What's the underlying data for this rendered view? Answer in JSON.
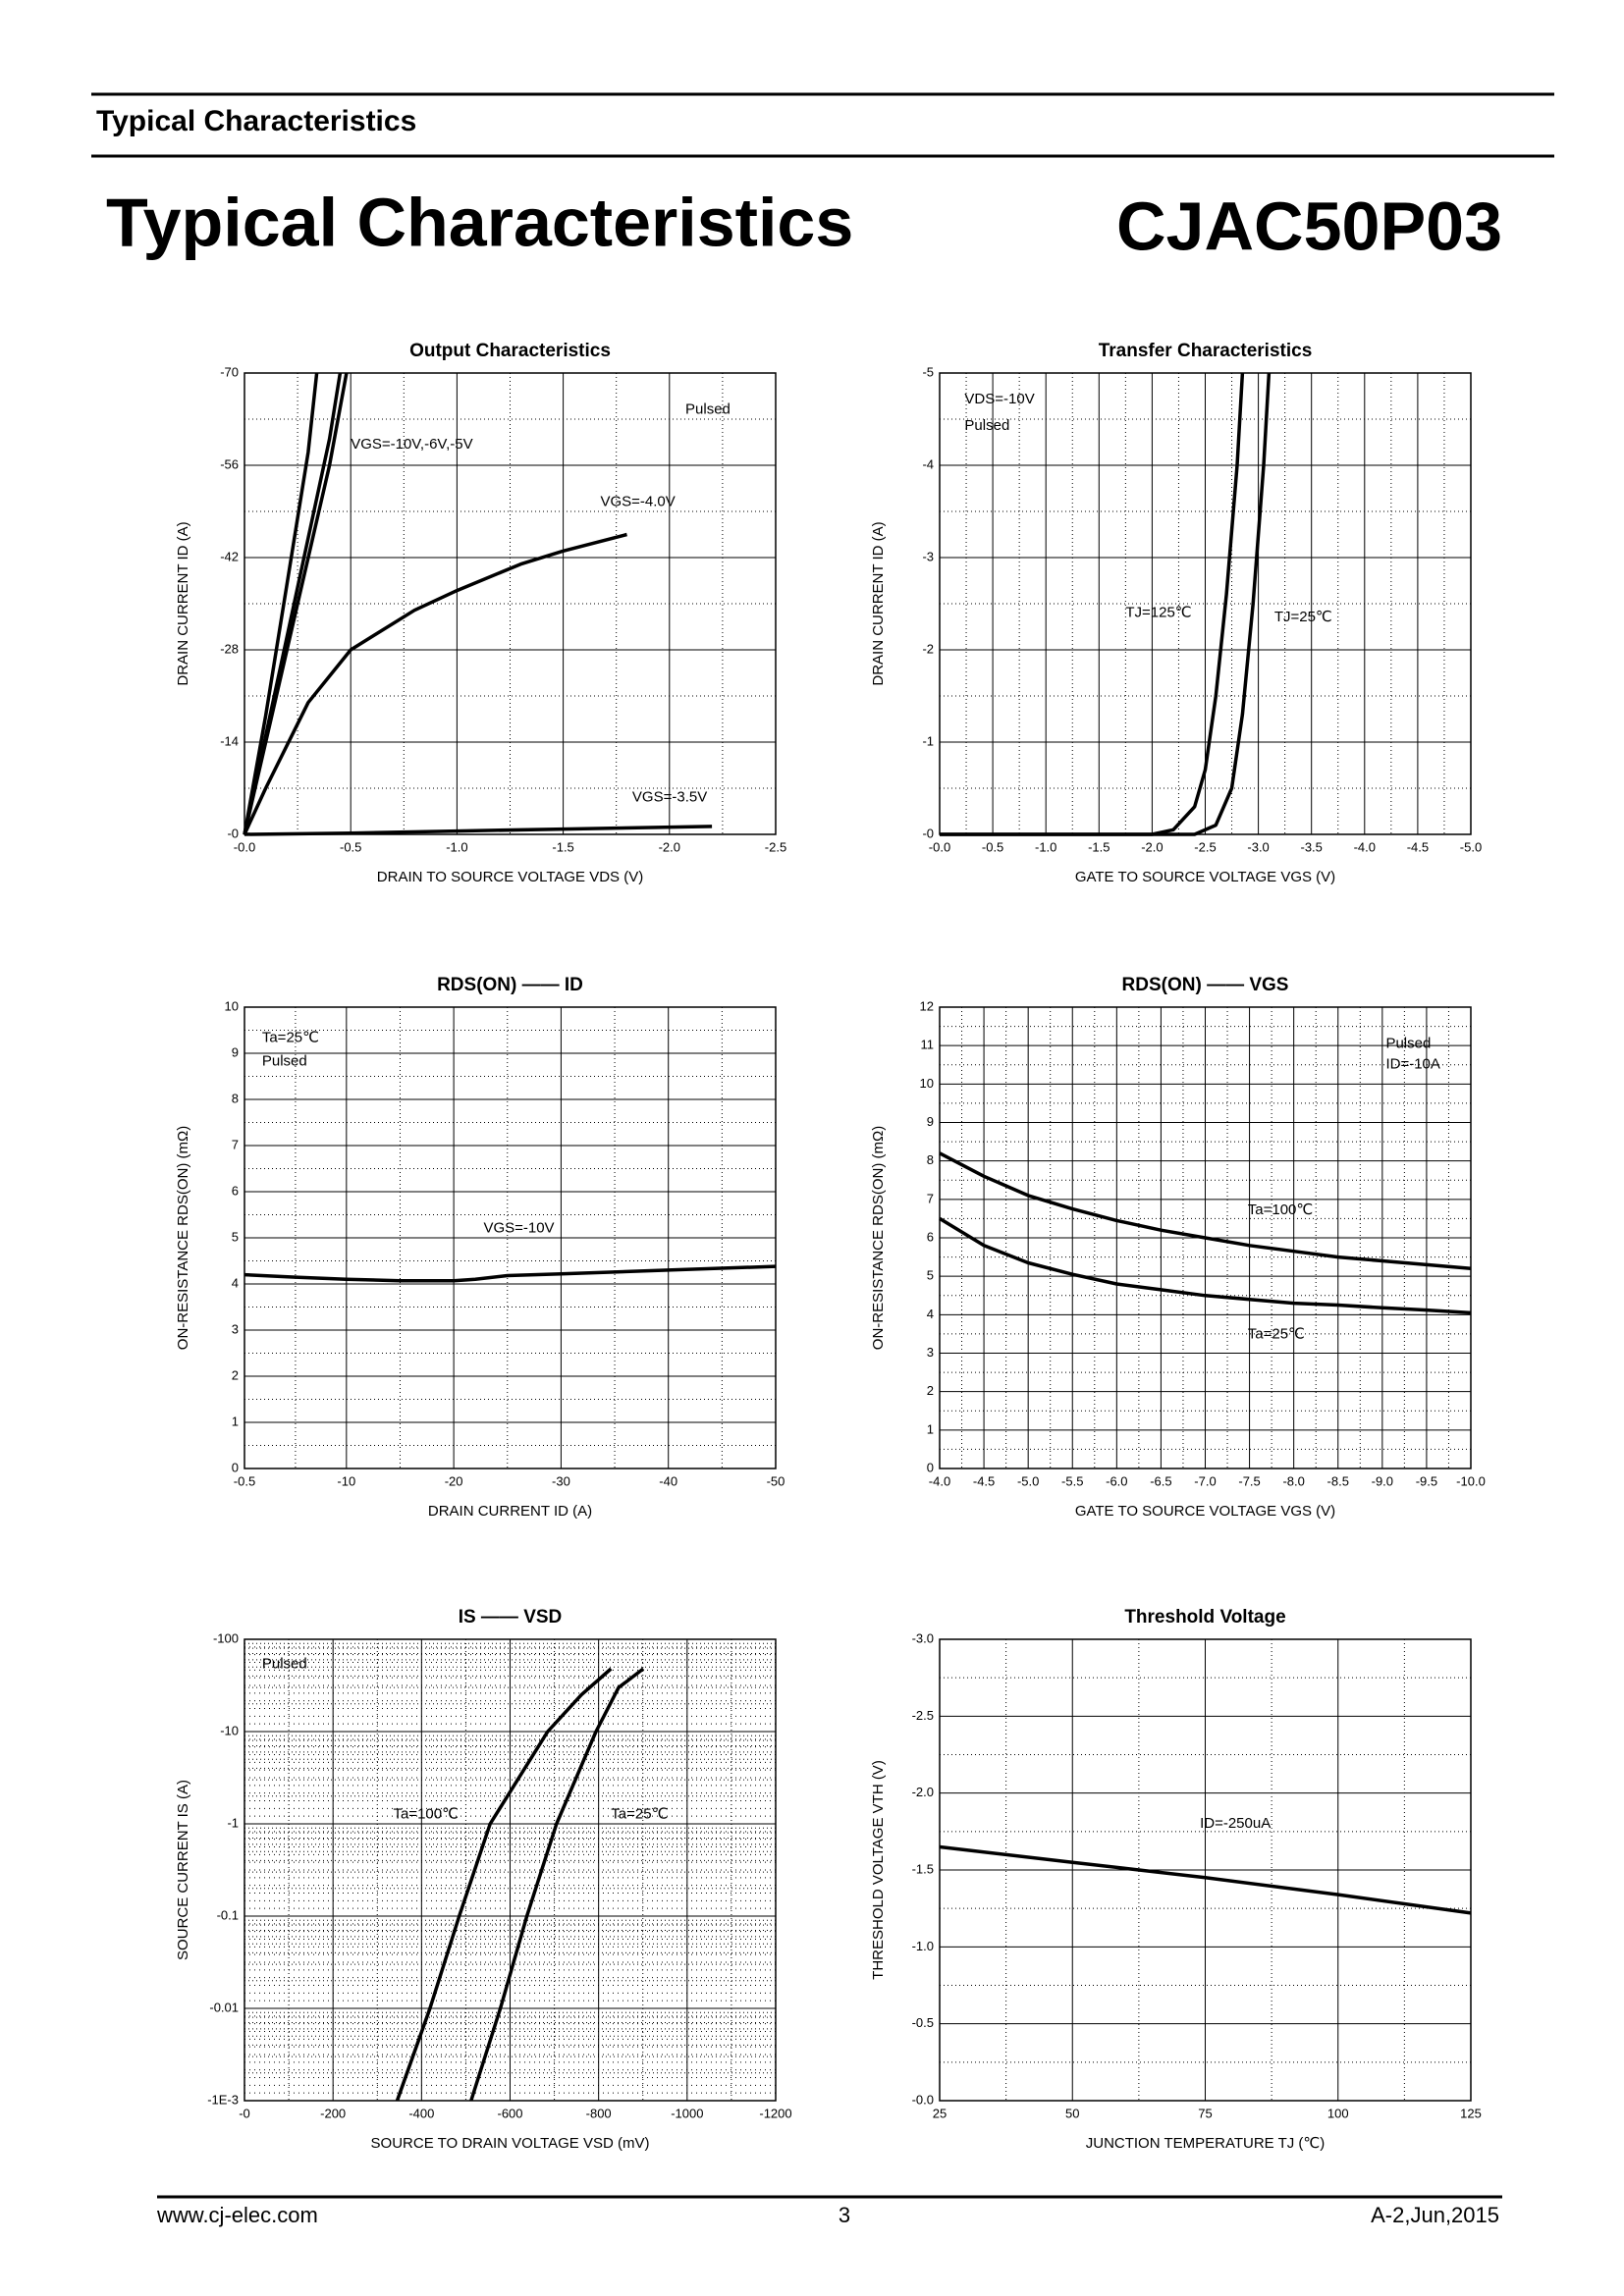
{
  "header": {
    "section": "Typical Characteristics",
    "title": "Typical Characteristics",
    "part": "CJAC50P03"
  },
  "footer": {
    "website": "www.cj-elec.com",
    "page": 3,
    "revision": "A-2,Jun,2015"
  },
  "chart_data": [
    {
      "type": "line",
      "title": "Output Characteristics",
      "x_label": "DRAIN TO SOURCE VOLTAGE VDS (V)",
      "y_label": "DRAIN CURRENT ID (A)",
      "xlim": [
        0,
        -2.5
      ],
      "xticks": [
        {
          "value": 0,
          "label": "-0.0"
        },
        -0.5,
        {
          "value": -1,
          "label": "-1.0"
        },
        -1.5,
        {
          "value": -2,
          "label": "-2.0"
        },
        -2.5
      ],
      "ylim": [
        0,
        -70
      ],
      "yticks": [
        {
          "value": 0,
          "label": "-0"
        },
        -14,
        -28,
        -42,
        -56,
        -70
      ],
      "grid": true,
      "annotations": [
        "Pulsed",
        "VGS=-10V,-6V,-5V",
        "VGS=-4.0V",
        "VGS=-3.5V"
      ],
      "series": [
        {
          "color": "#000000",
          "x": [
            0,
            -0.1,
            -0.2,
            -0.3,
            -0.34
          ],
          "values": [
            0,
            -18,
            -38,
            -58,
            -70
          ]
        },
        {
          "color": "#000000",
          "x": [
            0,
            -0.2,
            -0.4,
            -0.45
          ],
          "values": [
            0,
            -30,
            -60,
            -70
          ]
        },
        {
          "color": "#000000",
          "x": [
            0,
            -0.2,
            -0.4,
            -0.48
          ],
          "values": [
            0,
            -28,
            -56,
            -70
          ]
        },
        {
          "color": "#000000",
          "x": [
            0,
            -0.1,
            -0.3,
            -0.5,
            -0.8,
            -1,
            -1.3,
            -1.5,
            -1.8
          ],
          "values": [
            0,
            -7,
            -20,
            -28,
            -34,
            -37,
            -41,
            -43,
            -45.5
          ]
        },
        {
          "color": "#000000",
          "x": [
            0,
            -0.5,
            -1,
            -1.5,
            -2.2
          ],
          "values": [
            0,
            -0.2,
            -0.5,
            -0.8,
            -1.2
          ]
        }
      ]
    },
    {
      "type": "line",
      "title": "Transfer Characteristics",
      "x_label": "GATE TO SOURCE VOLTAGE VGS (V)",
      "y_label": "DRAIN CURRENT ID (A)",
      "xlim": [
        0,
        -5
      ],
      "xticks": [
        {
          "value": 0,
          "label": "-0.0"
        },
        -0.5,
        {
          "value": -1,
          "label": "-1.0"
        },
        -1.5,
        {
          "value": -2,
          "label": "-2.0"
        },
        -2.5,
        {
          "value": -3,
          "label": "-3.0"
        },
        -3.5,
        {
          "value": -4,
          "label": "-4.0"
        },
        -4.5,
        {
          "value": -5,
          "label": "-5.0"
        }
      ],
      "ylim": [
        0,
        -5
      ],
      "yticks": [
        {
          "value": 0,
          "label": "-0"
        },
        -1,
        -2,
        -3,
        -4,
        -5
      ],
      "grid": true,
      "annotations": [
        "VDS=-10V",
        "Pulsed",
        "TJ=125℃",
        "TJ=25℃"
      ],
      "series": [
        {
          "color": "#000000",
          "x": [
            0,
            -2,
            -2.2,
            -2.4,
            -2.5,
            -2.6,
            -2.7,
            -2.8,
            -2.85
          ],
          "values": [
            0,
            0,
            -0.05,
            -0.3,
            -0.7,
            -1.5,
            -2.6,
            -4,
            -5
          ]
        },
        {
          "color": "#000000",
          "x": [
            0,
            -2.4,
            -2.6,
            -2.75,
            -2.85,
            -2.95,
            -3.05,
            -3.1
          ],
          "values": [
            0,
            0,
            -0.1,
            -0.5,
            -1.3,
            -2.5,
            -4,
            -5
          ]
        }
      ]
    },
    {
      "type": "line",
      "title": "RDS(ON) —— ID",
      "x_label": "DRAIN CURRENT ID (A)",
      "y_label": "ON-RESISTANCE RDS(ON) (mΩ)",
      "xlim": [
        -0.5,
        -50
      ],
      "xticks": [
        -0.5,
        -10,
        -20,
        -30,
        -40,
        -50
      ],
      "ylim": [
        0,
        10
      ],
      "yticks": [
        0,
        1,
        2,
        3,
        4,
        5,
        6,
        7,
        8,
        9,
        10
      ],
      "grid": true,
      "annotations": [
        "Ta=25℃",
        "Pulsed",
        "VGS=-10V"
      ],
      "series": [
        {
          "color": "#000000",
          "x": [
            -0.5,
            -5,
            -10,
            -15,
            -20,
            -22,
            -25,
            -30,
            -40,
            -50
          ],
          "values": [
            4.2,
            4.15,
            4.1,
            4.07,
            4.07,
            4.1,
            4.18,
            4.22,
            4.3,
            4.38
          ]
        }
      ]
    },
    {
      "type": "line",
      "title": "RDS(ON) —— VGS",
      "x_label": "GATE TO SOURCE VOLTAGE VGS (V)",
      "y_label": "ON-RESISTANCE RDS(ON) (mΩ)",
      "xlim": [
        -4,
        -10
      ],
      "xticks": [
        {
          "value": -4,
          "label": "-4.0"
        },
        -4.5,
        {
          "value": -5,
          "label": "-5.0"
        },
        -5.5,
        {
          "value": -6,
          "label": "-6.0"
        },
        -6.5,
        {
          "value": -7,
          "label": "-7.0"
        },
        -7.5,
        {
          "value": -8,
          "label": "-8.0"
        },
        -8.5,
        {
          "value": -9,
          "label": "-9.0"
        },
        -9.5,
        {
          "value": -10,
          "label": "-10.0"
        }
      ],
      "ylim": [
        0,
        12
      ],
      "yticks": [
        0,
        1,
        2,
        3,
        4,
        5,
        6,
        7,
        8,
        9,
        10,
        11,
        12
      ],
      "grid": true,
      "annotations": [
        "Pulsed",
        "ID=-10A",
        "Ta=100℃",
        "Ta=25℃"
      ],
      "series": [
        {
          "color": "#000000",
          "x": [
            -4,
            -4.5,
            -5,
            -5.5,
            -6,
            -6.5,
            -7,
            -7.5,
            -8,
            -8.5,
            -9,
            -9.5,
            -10
          ],
          "values": [
            8.2,
            7.6,
            7.1,
            6.75,
            6.45,
            6.2,
            6,
            5.8,
            5.65,
            5.5,
            5.4,
            5.3,
            5.2
          ]
        },
        {
          "color": "#000000",
          "x": [
            -4,
            -4.5,
            -5,
            -5.5,
            -6,
            -6.5,
            -7,
            -7.5,
            -8,
            -8.5,
            -9,
            -9.5,
            -10
          ],
          "values": [
            6.5,
            5.8,
            5.35,
            5.05,
            4.8,
            4.65,
            4.5,
            4.4,
            4.3,
            4.25,
            4.18,
            4.12,
            4.05
          ]
        }
      ]
    },
    {
      "type": "line",
      "title": "IS —— VSD",
      "x_label": "SOURCE TO DRAIN VOLTAGE VSD (mV)",
      "y_label": "SOURCE CURRENT IS (A)",
      "xlim": [
        0,
        -1200
      ],
      "xticks": [
        {
          "value": 0,
          "label": "-0"
        },
        -200,
        -400,
        -600,
        -800,
        -1000,
        -1200
      ],
      "ylim": [
        -0.001,
        -100
      ],
      "y_log": true,
      "yticks": [
        {
          "value": -0.001,
          "label": "-1E-3"
        },
        -0.01,
        -0.1,
        -1,
        -10,
        -100
      ],
      "grid": true,
      "annotations": [
        "Pulsed",
        "Ta=100℃",
        "Ta=25℃"
      ],
      "series": [
        {
          "color": "#000000",
          "x": [
            -345,
            -419,
            -485,
            -555,
            -685,
            -761,
            -828
          ],
          "values": [
            -0.001,
            -0.01,
            -0.1,
            -1,
            -10,
            -25,
            -48
          ]
        },
        {
          "color": "#000000",
          "x": [
            -512,
            -578,
            -638,
            -705,
            -794,
            -845,
            -901
          ],
          "values": [
            -0.001,
            -0.01,
            -0.1,
            -1,
            -10,
            -30,
            -48
          ]
        }
      ]
    },
    {
      "type": "line",
      "title": "Threshold Voltage",
      "x_label": "JUNCTION TEMPERATURE TJ (℃)",
      "y_label": "THRESHOLD VOLTAGE VTH (V)",
      "xlim": [
        25,
        125
      ],
      "xticks": [
        25,
        50,
        75,
        100,
        125
      ],
      "ylim": [
        0,
        -3
      ],
      "yticks": [
        {
          "value": 0,
          "label": "-0.0"
        },
        -0.5,
        {
          "value": -1,
          "label": "-1.0"
        },
        -1.5,
        {
          "value": -2,
          "label": "-2.0"
        },
        -2.5,
        {
          "value": -3,
          "label": "-3.0"
        }
      ],
      "grid": true,
      "annotations": [
        "ID=-250uA"
      ],
      "series": [
        {
          "color": "#000000",
          "x": [
            25,
            50,
            75,
            100,
            125
          ],
          "values": [
            -1.65,
            -1.55,
            -1.45,
            -1.34,
            -1.22
          ]
        }
      ]
    }
  ]
}
